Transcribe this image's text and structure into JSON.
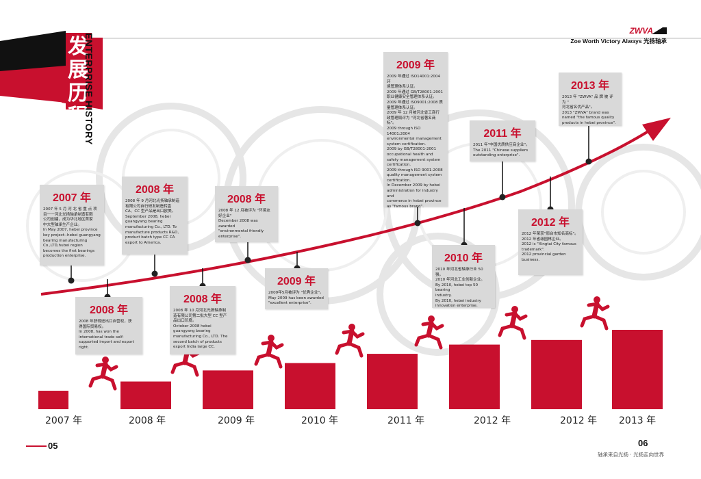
{
  "header": {
    "title_cn": "发展历程",
    "title_en": "ENTERPRISE HISTORY",
    "brand": "ZWVA",
    "slogan": "Zoe Worth Victory Always 光扬轴承"
  },
  "colors": {
    "accent": "#c8102e",
    "card_bg": "#d9d9d9"
  },
  "cards": [
    {
      "year": "2007 年",
      "text": "2007 年 5 月 河 北 省 重 点 项\n目一一河北光扬轴承制造有限\n公司创建，成为华北地区首家\n中大型轴承生产企业。\nIn May 2007, hebei province\nkey project--hebei guangyang\nbearing manufacturing\nCo.,LTD,hubei region\nbecomes the first bearings\nproduction enterprise."
    },
    {
      "year": "2008 年",
      "text": "2008 年获得进出口自营权，获\n得国际贸易权。\nIn 2008, has won the\ninternational trade self-\nsupported import and export\nright."
    },
    {
      "year": "2008 年",
      "text": "2008 年 9 月河北光扬轴承制造\n有限公司自行研发制造转盘\nCA、CC 型产品是出口欧美。\nSeptember 2008, hebei\nguangyang bearing\nmanufacturing Co., LTD. To\nmanufacture products R&D,\nproduct batch type CC CA\nexport to America."
    },
    {
      "year": "2008 年",
      "text": "2008 年 10 月河北光扬轴承制\n造有限公司第二批大型 CC 型产\n品出口印度。\nOctober 2008 hebei\nguangyang bearing\nmanufacturing Co., LTD. The\nsecond batch of products\nexport India large CC."
    },
    {
      "year": "2008 年",
      "text": "2008 年 12 月被评为 \"环境友\n好企业\"\nDecember 2008 was awarded\n\"environmental friendly\nenterprise\"."
    },
    {
      "year": "2009 年",
      "text": "2009年5月被评为 \"优秀企业\"。\nMay 2009 has been awarded\n\"excellent enterprise\"."
    },
    {
      "year": "2009 年",
      "text": "2009 年通过 ISO14001:2004 环\n境管理体系认证。\n2009 年通过 GB/T28001-2001\n职业健康安全管理体系认证。\n2009 年通过 ISO9001:2008 质\n量管理体系认证。\n2009 年 12 月被河北省工商行\n政管理局评为 \"河北省著名商\n标\"。\n2009 through ISO 14001:2004\nenvironmental management\nsystem certification.\n2009 by GB/T28001-2001\noccupational health and\nsafety management system\ncertification.\n2009 through ISO 9001-2008\nquality management system\ncertification.\nIn December 2009 by hebei\nadministration for industry and\ncommerce in hebei province\nas \"famous brand\"."
    },
    {
      "year": "2010 年",
      "text": "2010 年河北省轴承行业 50 强。\n2010 年河北工业创新企业。\nBy 2010, hebei top 50 bearing\nindustry.\nBy 2010, hebei industry\ninnovation enterprise."
    },
    {
      "year": "2011 年",
      "text": "2011 年\"中国优质供应商企业\"。\nThe 2011 \"Chinese suppliers\noutstanding enterprise\"."
    },
    {
      "year": "2012 年",
      "text": "2012 年荣获\"邢台市知名商标\"。\n2012 年省级园林企业。\n2012 is \"Xingtai City famous\ntrademark\".\n2012 provincial garden\nbusiness."
    },
    {
      "year": "2013 年",
      "text": "2013 年 \"ZWVA\" 品 牌 被 评 为 \"\n河北省名优产品\"。\n2013 \"ZWVA\" brand was\nnamed \"the famous quality\nproducts in hebei province\"."
    }
  ],
  "axis_labels": [
    "2007 年",
    "2008 年",
    "2009 年",
    "2010 年",
    "2011 年",
    "2012 年",
    "2012 年",
    "2013 年"
  ],
  "bars": {
    "levels": [
      1,
      1.5,
      2.1,
      2.5,
      3.0,
      3.5,
      3.75,
      4.3
    ],
    "max": 4.3
  },
  "footer": {
    "page_left": "05",
    "page_right": "06",
    "note": "轴承来自光扬 · 光扬走向世界"
  }
}
